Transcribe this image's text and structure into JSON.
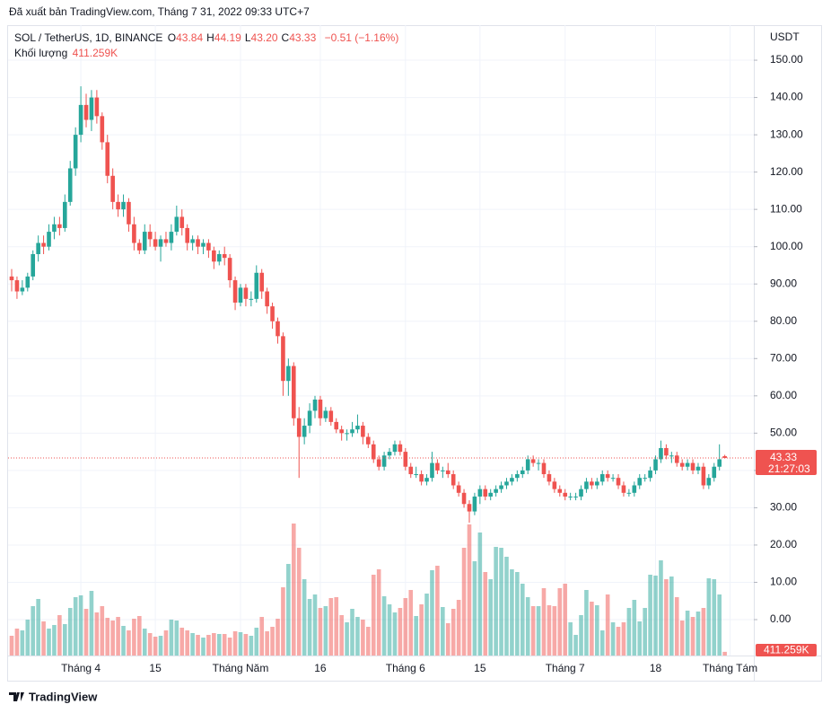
{
  "header": {
    "published": "Đã xuất bản TradingView.com, Tháng 7 31, 2022 09:33 UTC+7"
  },
  "chart_data": {
    "type": "candlestick",
    "symbol": "SOL / TetherUS, 1D, BINANCE",
    "ohlc_legend": [
      {
        "key": "O",
        "value": "43.84"
      },
      {
        "key": "H",
        "value": "44.19"
      },
      {
        "key": "L",
        "value": "43.20"
      },
      {
        "key": "C",
        "value": "43.33"
      }
    ],
    "change": "−0.51 (−1.16%)",
    "volume_title": "Khối lượng",
    "volume_label": "411.259K",
    "currency": "USDT",
    "countdown": "21:27:03",
    "up_color": "#26a69a",
    "down_color": "#ef5350",
    "grid": true,
    "ylim": [
      -9.63,
      159.4
    ],
    "yticks": [
      {
        "value": 0,
        "label": "0.00"
      },
      {
        "value": 10,
        "label": "10.00"
      },
      {
        "value": 20,
        "label": "20.00"
      },
      {
        "value": 30,
        "label": "30.00"
      },
      {
        "value": 40,
        "label": "40.00"
      },
      {
        "value": 50,
        "label": "50.00"
      },
      {
        "value": 60,
        "label": "60.00"
      },
      {
        "value": 70,
        "label": "70.00"
      },
      {
        "value": 80,
        "label": "80.00"
      },
      {
        "value": 90,
        "label": "90.00"
      },
      {
        "value": 100,
        "label": "100.00"
      },
      {
        "value": 110,
        "label": "110.00"
      },
      {
        "value": 120,
        "label": "120.00"
      },
      {
        "value": 130,
        "label": "130.00"
      },
      {
        "value": 140,
        "label": "140.00"
      },
      {
        "value": 150,
        "label": "150.00"
      }
    ],
    "categories": [
      null,
      null,
      null,
      null,
      null,
      null,
      null,
      null,
      null,
      null,
      null,
      null,
      null,
      "Tháng 4",
      null,
      null,
      null,
      null,
      null,
      null,
      null,
      null,
      null,
      null,
      null,
      null,
      null,
      "15",
      null,
      null,
      null,
      null,
      null,
      null,
      null,
      null,
      null,
      null,
      null,
      null,
      null,
      null,
      null,
      "Tháng Năm",
      null,
      null,
      null,
      null,
      null,
      null,
      null,
      null,
      null,
      null,
      null,
      null,
      null,
      null,
      "16",
      null,
      null,
      null,
      null,
      null,
      null,
      null,
      null,
      null,
      null,
      null,
      null,
      null,
      null,
      null,
      "Tháng 6",
      null,
      null,
      null,
      null,
      null,
      null,
      null,
      null,
      null,
      null,
      null,
      null,
      null,
      "15",
      null,
      null,
      null,
      null,
      null,
      null,
      null,
      null,
      null,
      null,
      null,
      null,
      null,
      null,
      null,
      "Tháng 7",
      null,
      null,
      null,
      null,
      null,
      null,
      null,
      null,
      null,
      null,
      null,
      null,
      null,
      null,
      null,
      null,
      "18",
      null,
      null,
      null,
      null,
      null,
      null,
      null,
      null,
      null,
      null,
      null,
      null,
      null,
      "Tháng Tám"
    ],
    "candles": [
      [
        92,
        94,
        88,
        91
      ],
      [
        91,
        92,
        86,
        88
      ],
      [
        88,
        91,
        87,
        89
      ],
      [
        89,
        93,
        88,
        92
      ],
      [
        92,
        99,
        91,
        98
      ],
      [
        98,
        103,
        96,
        101
      ],
      [
        101,
        103,
        98,
        100
      ],
      [
        100,
        106,
        99,
        104
      ],
      [
        104,
        108,
        102,
        106
      ],
      [
        106,
        108,
        103,
        105
      ],
      [
        105,
        114,
        104,
        112
      ],
      [
        112,
        123,
        111,
        121
      ],
      [
        121,
        132,
        119,
        130
      ],
      [
        130,
        143,
        128,
        138
      ],
      [
        138,
        141,
        132,
        134
      ],
      [
        134,
        142,
        131,
        140
      ],
      [
        140,
        142,
        133,
        135
      ],
      [
        135,
        136,
        126,
        128
      ],
      [
        128,
        130,
        117,
        119
      ],
      [
        119,
        121,
        110,
        112
      ],
      [
        112,
        114,
        108,
        110
      ],
      [
        110,
        114,
        108,
        112
      ],
      [
        112,
        113,
        104,
        106
      ],
      [
        106,
        108,
        99,
        101
      ],
      [
        101,
        102,
        98,
        99
      ],
      [
        99,
        106,
        98,
        104
      ],
      [
        104,
        106,
        100,
        102
      ],
      [
        102,
        104,
        99,
        100
      ],
      [
        100,
        103,
        96,
        102
      ],
      [
        102,
        104,
        100,
        101
      ],
      [
        101,
        106,
        99,
        104
      ],
      [
        104,
        111,
        103,
        108
      ],
      [
        108,
        110,
        103,
        105
      ],
      [
        105,
        106,
        99,
        101
      ],
      [
        101,
        103,
        99,
        102
      ],
      [
        102,
        103,
        98,
        100
      ],
      [
        100,
        102,
        98,
        101
      ],
      [
        101,
        102,
        97,
        99
      ],
      [
        99,
        100,
        94,
        96
      ],
      [
        96,
        99,
        95,
        98
      ],
      [
        98,
        100,
        95,
        97
      ],
      [
        97,
        98,
        89,
        91
      ],
      [
        91,
        92,
        83,
        85
      ],
      [
        85,
        90,
        84,
        89
      ],
      [
        89,
        90,
        84,
        86
      ],
      [
        86,
        88,
        84,
        86
      ],
      [
        86,
        95,
        85,
        93
      ],
      [
        93,
        94,
        86,
        88
      ],
      [
        88,
        89,
        82,
        84
      ],
      [
        84,
        85,
        78,
        80
      ],
      [
        80,
        81,
        74,
        76
      ],
      [
        76,
        77,
        60,
        64
      ],
      [
        64,
        70,
        60,
        68
      ],
      [
        68,
        69,
        52,
        54
      ],
      [
        54,
        57,
        38,
        49
      ],
      [
        49,
        54,
        47,
        52
      ],
      [
        52,
        58,
        50,
        56
      ],
      [
        56,
        60,
        54,
        59
      ],
      [
        59,
        60,
        52,
        54
      ],
      [
        54,
        57,
        53,
        56
      ],
      [
        56,
        57,
        52,
        53
      ],
      [
        53,
        54,
        50,
        51
      ],
      [
        51,
        52,
        48,
        50
      ],
      [
        50,
        51,
        48,
        50
      ],
      [
        50,
        53,
        49,
        51
      ],
      [
        51,
        55,
        50,
        52
      ],
      [
        52,
        53,
        47,
        49
      ],
      [
        49,
        50,
        46,
        47
      ],
      [
        47,
        48,
        42,
        43
      ],
      [
        43,
        44,
        40,
        41
      ],
      [
        41,
        45,
        40,
        44
      ],
      [
        44,
        46,
        43,
        45
      ],
      [
        45,
        48,
        44,
        47
      ],
      [
        47,
        48,
        44,
        45
      ],
      [
        45,
        46,
        40,
        41
      ],
      [
        41,
        42,
        38,
        39
      ],
      [
        39,
        41,
        38,
        39
      ],
      [
        39,
        40,
        36,
        37
      ],
      [
        37,
        39,
        36,
        38
      ],
      [
        38,
        45,
        37,
        42
      ],
      [
        42,
        43,
        39,
        40
      ],
      [
        40,
        41,
        38,
        40
      ],
      [
        40,
        42,
        38,
        39
      ],
      [
        39,
        40,
        35,
        36
      ],
      [
        36,
        37,
        33,
        34
      ],
      [
        34,
        35,
        30,
        31
      ],
      [
        31,
        32,
        26,
        29
      ],
      [
        29,
        34,
        28,
        33
      ],
      [
        33,
        36,
        31,
        35
      ],
      [
        35,
        36,
        32,
        33
      ],
      [
        33,
        35,
        32,
        34
      ],
      [
        34,
        36,
        33,
        35
      ],
      [
        35,
        37,
        34,
        36
      ],
      [
        36,
        38,
        35,
        37
      ],
      [
        37,
        39,
        36,
        38
      ],
      [
        38,
        40,
        37,
        39
      ],
      [
        39,
        41,
        38,
        40
      ],
      [
        40,
        44,
        39,
        43
      ],
      [
        43,
        44,
        41,
        42
      ],
      [
        42,
        43,
        40,
        42
      ],
      [
        42,
        43,
        38,
        39
      ],
      [
        39,
        40,
        36,
        37
      ],
      [
        37,
        38,
        34,
        35
      ],
      [
        35,
        36,
        33,
        34
      ],
      [
        34,
        35,
        32,
        33
      ],
      [
        33,
        34,
        32,
        33
      ],
      [
        33,
        34,
        32,
        33
      ],
      [
        33,
        36,
        32,
        35
      ],
      [
        35,
        38,
        34,
        37
      ],
      [
        37,
        38,
        35,
        36
      ],
      [
        36,
        38,
        35,
        37
      ],
      [
        37,
        40,
        36,
        39
      ],
      [
        39,
        40,
        37,
        38
      ],
      [
        38,
        39,
        37,
        38
      ],
      [
        38,
        39,
        35,
        36
      ],
      [
        36,
        37,
        33,
        34
      ],
      [
        34,
        35,
        33,
        34
      ],
      [
        34,
        37,
        33,
        36
      ],
      [
        36,
        39,
        35,
        38
      ],
      [
        38,
        39,
        37,
        38
      ],
      [
        38,
        41,
        37,
        40
      ],
      [
        40,
        44,
        39,
        43
      ],
      [
        43,
        48,
        42,
        46
      ],
      [
        46,
        47,
        43,
        44
      ],
      [
        44,
        45,
        42,
        44
      ],
      [
        44,
        45,
        41,
        42
      ],
      [
        42,
        43,
        40,
        41
      ],
      [
        41,
        43,
        40,
        42
      ],
      [
        42,
        43,
        39,
        40
      ],
      [
        40,
        42,
        39,
        41
      ],
      [
        41,
        42,
        35,
        36
      ],
      [
        36,
        39,
        35,
        38
      ],
      [
        38,
        42,
        37,
        41
      ],
      [
        41,
        47,
        40,
        43
      ],
      [
        43.84,
        44.19,
        43.2,
        43.33
      ],
      null
    ],
    "volumes": [
      2200,
      3000,
      2800,
      4000,
      5500,
      6300,
      3800,
      3000,
      3400,
      4500,
      3500,
      5300,
      6500,
      6700,
      5200,
      7200,
      4800,
      5500,
      4200,
      3900,
      4300,
      3300,
      2800,
      4100,
      4400,
      3000,
      2500,
      2100,
      2200,
      2800,
      4000,
      3900,
      3100,
      2800,
      2500,
      2300,
      2000,
      2300,
      2500,
      2400,
      2400,
      2000,
      2700,
      2600,
      2400,
      2200,
      3100,
      4300,
      2700,
      3200,
      4100,
      7600,
      10200,
      14700,
      12000,
      8500,
      6300,
      6800,
      5300,
      5500,
      6400,
      6500,
      4500,
      3700,
      5200,
      4300,
      4000,
      3200,
      9000,
      9600,
      6600,
      5700,
      4800,
      5300,
      6400,
      7300,
      4400,
      5700,
      6900,
      9500,
      10000,
      5400,
      3600,
      5200,
      6200,
      12000,
      14600,
      10500,
      13700,
      9300,
      8500,
      12100,
      12000,
      11000,
      9600,
      9300,
      8000,
      6500,
      5500,
      5500,
      7500,
      5600,
      5500,
      7500,
      8000,
      3700,
      2300,
      4500,
      7300,
      6000,
      5600,
      2800,
      6800,
      3700,
      3200,
      3700,
      5300,
      6200,
      3800,
      5300,
      9000,
      8900,
      10600,
      8500,
      8800,
      6500,
      3900,
      5000,
      4300,
      4900,
      5300,
      8600,
      8500,
      6800,
      411.259,
      null
    ]
  },
  "footer": {
    "brand": "TradingView"
  }
}
